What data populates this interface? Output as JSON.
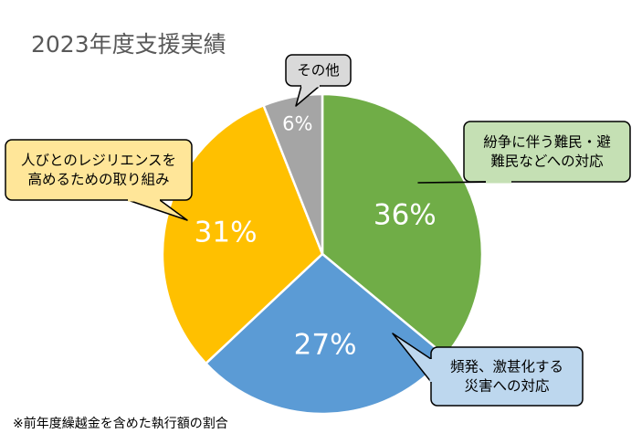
{
  "title": "2023年度支援実績",
  "footnote": "※前年度繰越金を含めた執行額の割合",
  "chart_data": {
    "type": "pie",
    "title": "2023年度支援実績",
    "slices": [
      {
        "label": [
          "紛争に伴う難民・避",
          "難民などへの対応"
        ],
        "value": 36,
        "value_label": "36%",
        "color": "#70AD47",
        "callout_fill": "#C5E0B4"
      },
      {
        "label": [
          "頻発、激甚化する",
          "災害への対応"
        ],
        "value": 27,
        "value_label": "27%",
        "color": "#5B9BD5",
        "callout_fill": "#BDD7EE"
      },
      {
        "label": [
          "人びとのレジリエンスを",
          "高めるための取り組み"
        ],
        "value": 31,
        "value_label": "31%",
        "color": "#FFC000",
        "callout_fill": "#FFE699"
      },
      {
        "label": [
          "その他"
        ],
        "value": 6,
        "value_label": "6%",
        "color": "#A5A5A5",
        "callout_fill": "#D9D9D9"
      }
    ],
    "start_angle": "12 o'clock",
    "direction": "clockwise",
    "legend": "none (callout labels)"
  }
}
